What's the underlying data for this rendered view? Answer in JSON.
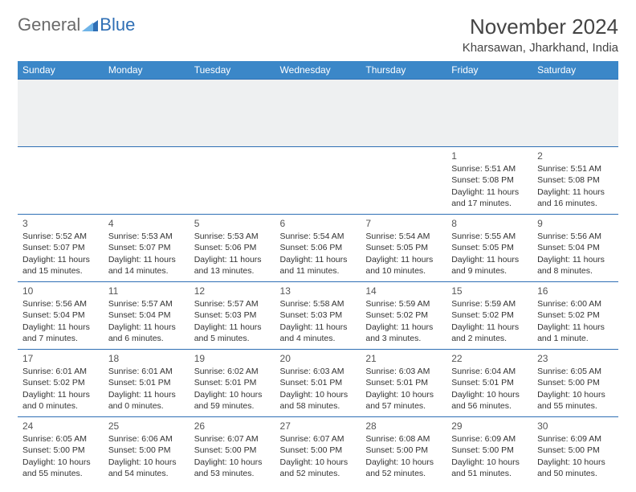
{
  "logo": {
    "text1": "General",
    "text2": "Blue"
  },
  "title": "November 2024",
  "location": "Kharsawan, Jharkhand, India",
  "colors": {
    "header_bg": "#3b87c8",
    "header_text": "#ffffff",
    "rule": "#2f6fb5",
    "spacer_bg": "#eef0f1",
    "body_text": "#333333",
    "logo_gray": "#6a6a6a",
    "logo_blue": "#2f6fb5"
  },
  "weekdays": [
    "Sunday",
    "Monday",
    "Tuesday",
    "Wednesday",
    "Thursday",
    "Friday",
    "Saturday"
  ],
  "weeks": [
    [
      null,
      null,
      null,
      null,
      null,
      {
        "n": "1",
        "sr": "5:51 AM",
        "ss": "5:08 PM",
        "dh": "11",
        "dm": "17"
      },
      {
        "n": "2",
        "sr": "5:51 AM",
        "ss": "5:08 PM",
        "dh": "11",
        "dm": "16"
      }
    ],
    [
      {
        "n": "3",
        "sr": "5:52 AM",
        "ss": "5:07 PM",
        "dh": "11",
        "dm": "15"
      },
      {
        "n": "4",
        "sr": "5:53 AM",
        "ss": "5:07 PM",
        "dh": "11",
        "dm": "14"
      },
      {
        "n": "5",
        "sr": "5:53 AM",
        "ss": "5:06 PM",
        "dh": "11",
        "dm": "13"
      },
      {
        "n": "6",
        "sr": "5:54 AM",
        "ss": "5:06 PM",
        "dh": "11",
        "dm": "11"
      },
      {
        "n": "7",
        "sr": "5:54 AM",
        "ss": "5:05 PM",
        "dh": "11",
        "dm": "10"
      },
      {
        "n": "8",
        "sr": "5:55 AM",
        "ss": "5:05 PM",
        "dh": "11",
        "dm": "9"
      },
      {
        "n": "9",
        "sr": "5:56 AM",
        "ss": "5:04 PM",
        "dh": "11",
        "dm": "8"
      }
    ],
    [
      {
        "n": "10",
        "sr": "5:56 AM",
        "ss": "5:04 PM",
        "dh": "11",
        "dm": "7"
      },
      {
        "n": "11",
        "sr": "5:57 AM",
        "ss": "5:04 PM",
        "dh": "11",
        "dm": "6"
      },
      {
        "n": "12",
        "sr": "5:57 AM",
        "ss": "5:03 PM",
        "dh": "11",
        "dm": "5"
      },
      {
        "n": "13",
        "sr": "5:58 AM",
        "ss": "5:03 PM",
        "dh": "11",
        "dm": "4"
      },
      {
        "n": "14",
        "sr": "5:59 AM",
        "ss": "5:02 PM",
        "dh": "11",
        "dm": "3"
      },
      {
        "n": "15",
        "sr": "5:59 AM",
        "ss": "5:02 PM",
        "dh": "11",
        "dm": "2"
      },
      {
        "n": "16",
        "sr": "6:00 AM",
        "ss": "5:02 PM",
        "dh": "11",
        "dm": "1"
      }
    ],
    [
      {
        "n": "17",
        "sr": "6:01 AM",
        "ss": "5:02 PM",
        "dh": "11",
        "dm": "0"
      },
      {
        "n": "18",
        "sr": "6:01 AM",
        "ss": "5:01 PM",
        "dh": "11",
        "dm": "0"
      },
      {
        "n": "19",
        "sr": "6:02 AM",
        "ss": "5:01 PM",
        "dh": "10",
        "dm": "59"
      },
      {
        "n": "20",
        "sr": "6:03 AM",
        "ss": "5:01 PM",
        "dh": "10",
        "dm": "58"
      },
      {
        "n": "21",
        "sr": "6:03 AM",
        "ss": "5:01 PM",
        "dh": "10",
        "dm": "57"
      },
      {
        "n": "22",
        "sr": "6:04 AM",
        "ss": "5:01 PM",
        "dh": "10",
        "dm": "56"
      },
      {
        "n": "23",
        "sr": "6:05 AM",
        "ss": "5:00 PM",
        "dh": "10",
        "dm": "55"
      }
    ],
    [
      {
        "n": "24",
        "sr": "6:05 AM",
        "ss": "5:00 PM",
        "dh": "10",
        "dm": "55"
      },
      {
        "n": "25",
        "sr": "6:06 AM",
        "ss": "5:00 PM",
        "dh": "10",
        "dm": "54"
      },
      {
        "n": "26",
        "sr": "6:07 AM",
        "ss": "5:00 PM",
        "dh": "10",
        "dm": "53"
      },
      {
        "n": "27",
        "sr": "6:07 AM",
        "ss": "5:00 PM",
        "dh": "10",
        "dm": "52"
      },
      {
        "n": "28",
        "sr": "6:08 AM",
        "ss": "5:00 PM",
        "dh": "10",
        "dm": "52"
      },
      {
        "n": "29",
        "sr": "6:09 AM",
        "ss": "5:00 PM",
        "dh": "10",
        "dm": "51"
      },
      {
        "n": "30",
        "sr": "6:09 AM",
        "ss": "5:00 PM",
        "dh": "10",
        "dm": "50"
      }
    ]
  ],
  "labels": {
    "sunrise": "Sunrise:",
    "sunset": "Sunset:",
    "daylight": "Daylight:",
    "hours": "hours",
    "and": "and",
    "minutes": "minutes.",
    "minute": "minute."
  }
}
